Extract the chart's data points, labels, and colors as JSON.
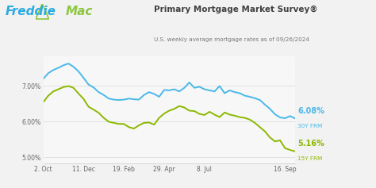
{
  "title": "Primary Mortgage Market Survey®",
  "subtitle": "U.S. weekly average mortgage rates as of 09/26/2024",
  "bg_color": "#f2f2f2",
  "plot_bg_color": "#f7f7f7",
  "line1_color": "#4ab8e8",
  "line2_color": "#8cb800",
  "ylabel_30y": "6.08%",
  "ylabel_15y": "5.16%",
  "sublabel_30y": "30Y FRM",
  "sublabel_15y": "15Y FRM",
  "yticks": [
    5.0,
    6.0,
    7.0
  ],
  "ytick_labels": [
    "5.00%",
    "6.00%",
    "7.00%"
  ],
  "xtick_labels": [
    "2. Oct",
    "11. Dec",
    "19. Feb",
    "29. Apr",
    "8. Jul",
    "16. Sep"
  ],
  "freddie_blue": "#29abe2",
  "freddie_green": "#8dc63f",
  "title_color": "#404040",
  "subtitle_color": "#777777",
  "x_vals": [
    0,
    1,
    2,
    3,
    4,
    5,
    6,
    7,
    8,
    9,
    10,
    11,
    12,
    13,
    14,
    15,
    16,
    17,
    18,
    19,
    20,
    21,
    22,
    23,
    24,
    25,
    26,
    27,
    28,
    29,
    30,
    31,
    32,
    33,
    34,
    35,
    36,
    37,
    38,
    39,
    40,
    41,
    42,
    43,
    44,
    45,
    46,
    47,
    48,
    49,
    50
  ],
  "y_30y": [
    7.19,
    7.35,
    7.44,
    7.5,
    7.57,
    7.62,
    7.53,
    7.4,
    7.22,
    7.03,
    6.95,
    6.82,
    6.74,
    6.64,
    6.61,
    6.6,
    6.61,
    6.64,
    6.62,
    6.61,
    6.74,
    6.82,
    6.77,
    6.69,
    6.88,
    6.87,
    6.9,
    6.84,
    6.94,
    7.09,
    6.94,
    6.97,
    6.9,
    6.87,
    6.84,
    6.99,
    6.79,
    6.87,
    6.82,
    6.79,
    6.72,
    6.69,
    6.65,
    6.6,
    6.47,
    6.35,
    6.2,
    6.11,
    6.09,
    6.15,
    6.08
  ],
  "y_15y": [
    6.54,
    6.72,
    6.84,
    6.9,
    6.96,
    6.99,
    6.94,
    6.78,
    6.63,
    6.41,
    6.33,
    6.24,
    6.1,
    5.99,
    5.96,
    5.93,
    5.93,
    5.84,
    5.8,
    5.89,
    5.96,
    5.97,
    5.91,
    6.1,
    6.22,
    6.3,
    6.35,
    6.43,
    6.39,
    6.3,
    6.29,
    6.21,
    6.18,
    6.27,
    6.19,
    6.12,
    6.25,
    6.19,
    6.16,
    6.12,
    6.1,
    6.05,
    5.96,
    5.84,
    5.72,
    5.55,
    5.44,
    5.47,
    5.25,
    5.2,
    5.16
  ],
  "xtick_positions": [
    0,
    8,
    16,
    24,
    32,
    48
  ]
}
